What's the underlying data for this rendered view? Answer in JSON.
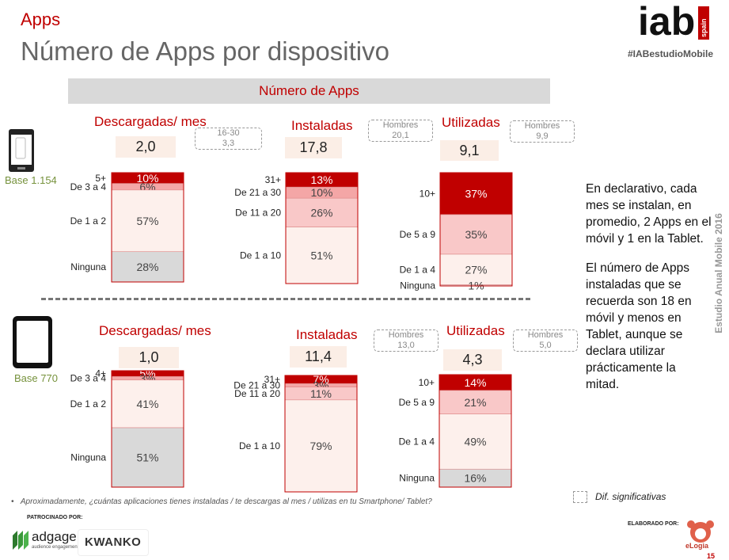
{
  "header": {
    "section": "Apps",
    "title": "Número de Apps por dispositivo",
    "hashtag": "#IABestudioMobile",
    "band": "Número de Apps"
  },
  "logo": {
    "text": "iab",
    "sub": "spain"
  },
  "devices": {
    "smartphone_base": "Base 1.154",
    "tablet_base": "Base 770"
  },
  "panels": [
    {
      "title": "Descargadas/ mes",
      "avg": "2,0",
      "note": "16-30\n3,3"
    },
    {
      "title": "Instaladas",
      "avg": "17,8",
      "note": "Hombres\n20,1"
    },
    {
      "title": "Utilizadas",
      "avg": "9,1",
      "note": "Hombres\n9,9"
    },
    {
      "title": "Descargadas/ mes",
      "avg": "1,0",
      "note": ""
    },
    {
      "title": "Instaladas",
      "avg": "11,4",
      "note": "Hombres\n13,0"
    },
    {
      "title": "Utilizadas",
      "avg": "4,3",
      "note": "Hombres\n5,0"
    }
  ],
  "chart_data": [
    {
      "type": "bar",
      "title": "Descargadas/ mes",
      "device": "Smartphone",
      "categories": [
        "5+",
        "De 3 a 4",
        "De 1 a 2",
        "Ninguna"
      ],
      "values": [
        10,
        6,
        57,
        28
      ],
      "labels": [
        "10%",
        "6%",
        "57%",
        "28%"
      ],
      "colors": [
        "#c00000",
        "#f4a6a6",
        "#fdf0ec",
        "#d9d9d9"
      ]
    },
    {
      "type": "bar",
      "title": "Instaladas",
      "device": "Smartphone",
      "categories": [
        "31+",
        "De 21 a 30",
        "De 11 a 20",
        "De 1 a 10"
      ],
      "values": [
        13,
        10,
        26,
        51
      ],
      "labels": [
        "13%",
        "10%",
        "26%",
        "51%"
      ],
      "colors": [
        "#c00000",
        "#f4a6a6",
        "#f9c8c8",
        "#fdf0ec"
      ]
    },
    {
      "type": "bar",
      "title": "Utilizadas",
      "device": "Smartphone",
      "categories": [
        "10+",
        "De 5 a 9",
        "De 1 a 4",
        "Ninguna"
      ],
      "values": [
        37,
        35,
        27,
        1
      ],
      "labels": [
        "37%",
        "35%",
        "27%",
        "1%"
      ],
      "colors": [
        "#c00000",
        "#f9c8c8",
        "#fdf0ec",
        "#d9d9d9"
      ]
    },
    {
      "type": "bar",
      "title": "Descargadas/ mes",
      "device": "Tablet",
      "categories": [
        "4+",
        "De 3 a 4",
        "De 1 a 2",
        "Ninguna"
      ],
      "values": [
        5,
        3,
        41,
        51
      ],
      "labels": [
        "5%",
        "3%",
        "41%",
        "51%"
      ],
      "colors": [
        "#c00000",
        "#f4a6a6",
        "#fdf0ec",
        "#d9d9d9"
      ]
    },
    {
      "type": "bar",
      "title": "Instaladas",
      "device": "Tablet",
      "categories": [
        "31+",
        "De 21 a 30",
        "De 11 a 20",
        "De 1 a 10"
      ],
      "values": [
        7,
        3,
        11,
        79
      ],
      "labels": [
        "7%",
        "3%",
        "11%",
        "79%"
      ],
      "colors": [
        "#c00000",
        "#f4a6a6",
        "#f9c8c8",
        "#fdf0ec"
      ]
    },
    {
      "type": "bar",
      "title": "Utilizadas",
      "device": "Tablet",
      "categories": [
        "10+",
        "De 5 a 9",
        "De 1 a 4",
        "Ninguna"
      ],
      "values": [
        14,
        21,
        49,
        16
      ],
      "labels": [
        "14%",
        "21%",
        "49%",
        "16%"
      ],
      "colors": [
        "#c00000",
        "#f9c8c8",
        "#fdf0ec",
        "#d9d9d9"
      ]
    }
  ],
  "side_text": {
    "p1": "En declarativo, cada mes se instalan, en promedio, 2 Apps en el móvil y 1 en la Tablet.",
    "p2": "El número de Apps instaladas que se recuerda son 18 en móvil y menos en Tablet, aunque se declara utilizar prácticamente la mitad."
  },
  "vertical_caption": "Estudio Anual Mobile 2016",
  "legend_label": "Dif. significativas",
  "footnote": "Aproximadamente, ¿cuántas aplicaciones tienes instaladas / te descargas al mes / utilizas en tu Smartphone/ Tablet?",
  "sponsor": {
    "label": "PATROCINADO POR:",
    "brand1": "adgage",
    "brand1_sub": "audience engagement",
    "brand2": "KWANKO"
  },
  "producer": {
    "label": "ELABORADO POR:",
    "brand": "eLogia"
  },
  "page_number": "15"
}
